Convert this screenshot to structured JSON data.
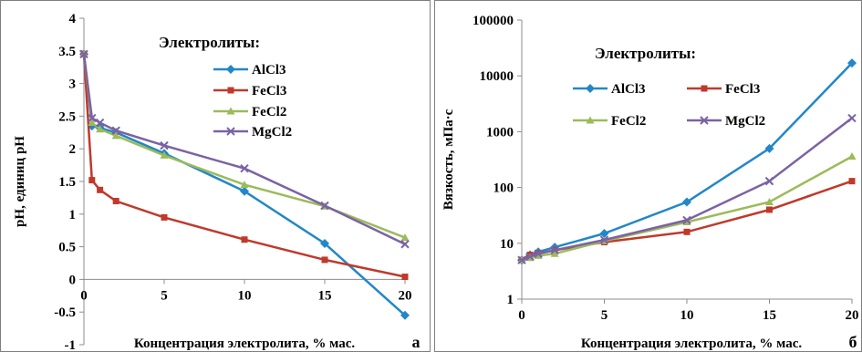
{
  "chart_data": [
    {
      "type": "line",
      "xlabel": "Концентрация электролита, % мас.",
      "ylabel": "рН, единиц рН",
      "panel_label": "а",
      "legend_title": "Электролиты:",
      "legend_position": "top-right",
      "xlim": [
        0,
        20
      ],
      "ylim": [
        -1,
        4
      ],
      "xticks": [
        0,
        5,
        10,
        15,
        20
      ],
      "yticks": [
        -1,
        -0.5,
        0,
        0.5,
        1,
        1.5,
        2,
        2.5,
        3,
        3.5,
        4
      ],
      "y_scale": "linear",
      "grid": false,
      "series": [
        {
          "name": "AlCl3",
          "color": "#2287c8",
          "marker": "diamond",
          "x": [
            0,
            0.5,
            1,
            2,
            5,
            10,
            15,
            20
          ],
          "y": [
            3.45,
            2.35,
            2.32,
            2.25,
            1.93,
            1.35,
            0.55,
            -0.55
          ]
        },
        {
          "name": "FeCl3",
          "color": "#c0392b",
          "marker": "square",
          "x": [
            0,
            0.5,
            1,
            2,
            5,
            10,
            15,
            20
          ],
          "y": [
            3.45,
            1.52,
            1.37,
            1.2,
            0.95,
            0.61,
            0.3,
            0.04
          ]
        },
        {
          "name": "FeCl2",
          "color": "#9bbb59",
          "marker": "triangle",
          "x": [
            0,
            0.5,
            1,
            2,
            5,
            10,
            15,
            20
          ],
          "y": [
            3.45,
            2.4,
            2.3,
            2.2,
            1.9,
            1.45,
            1.12,
            0.64
          ]
        },
        {
          "name": "MgCl2",
          "color": "#7b62a3",
          "marker": "x",
          "x": [
            0,
            0.5,
            1,
            2,
            5,
            10,
            15,
            20
          ],
          "y": [
            3.45,
            2.47,
            2.4,
            2.28,
            2.05,
            1.7,
            1.13,
            0.54
          ]
        }
      ]
    },
    {
      "type": "line",
      "xlabel": "Концентрация электролита, % мас.",
      "ylabel": "Вязкость, мПа·с",
      "panel_label": "б",
      "legend_title": "Электролиты:",
      "legend_position": "top-left",
      "xlim": [
        0,
        20
      ],
      "ylim": [
        1,
        100000
      ],
      "xticks": [
        0,
        5,
        10,
        15,
        20
      ],
      "yticks": [
        1,
        10,
        100,
        1000,
        10000,
        100000
      ],
      "ytick_labels": [
        "1",
        "10",
        "100",
        "1000",
        "10000",
        "100000"
      ],
      "y_scale": "log",
      "grid": false,
      "series": [
        {
          "name": "AlCl3",
          "color": "#2287c8",
          "marker": "diamond",
          "x": [
            0,
            0.5,
            1,
            2,
            5,
            10,
            15,
            20
          ],
          "y": [
            5,
            6.2,
            7,
            8.5,
            15,
            55,
            500,
            17000
          ]
        },
        {
          "name": "FeCl3",
          "color": "#c0392b",
          "marker": "square",
          "x": [
            0,
            0.5,
            1,
            2,
            5,
            10,
            15,
            20
          ],
          "y": [
            5,
            6.2,
            6.5,
            7.5,
            10.5,
            16,
            40,
            130
          ]
        },
        {
          "name": "FeCl2",
          "color": "#9bbb59",
          "marker": "triangle",
          "x": [
            0,
            0.5,
            1,
            2,
            5,
            10,
            15,
            20
          ],
          "y": [
            5,
            5.5,
            6,
            6.5,
            11,
            24,
            55,
            360
          ]
        },
        {
          "name": "MgCl2",
          "color": "#7b62a3",
          "marker": "x",
          "x": [
            0,
            0.5,
            1,
            2,
            5,
            10,
            15,
            20
          ],
          "y": [
            5,
            5.8,
            6.5,
            7.5,
            11.5,
            26,
            130,
            1750
          ]
        }
      ]
    }
  ]
}
